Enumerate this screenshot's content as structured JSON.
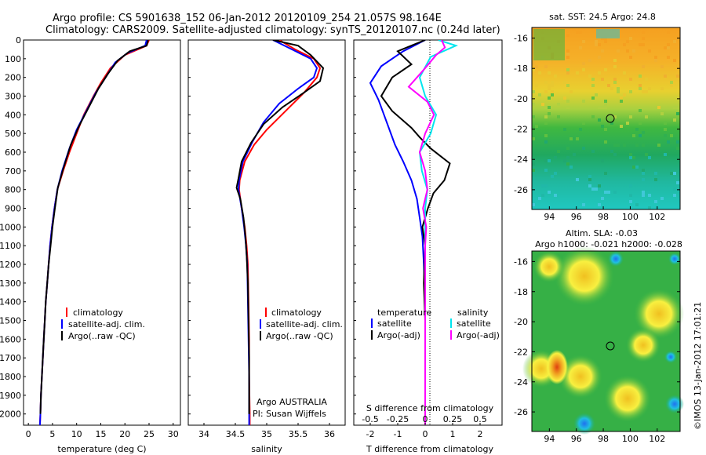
{
  "header": {
    "line1": "Argo profile: CS 5901638_152 06-Jan-2012 20120109_254 21.057S 98.164E",
    "line2": "Climatology: CARS2009. Satellite-adjusted climatology: synTS_20120107.nc (0.24d later)"
  },
  "colors": {
    "climatology": "#ff0000",
    "satellite": "#0000ff",
    "argo": "#000000",
    "sat_salinity": "#00e5ee",
    "argo_adj_salinity": "#ff00ff"
  },
  "depth_ticks": [
    "0",
    "100",
    "200",
    "300",
    "400",
    "500",
    "600",
    "700",
    "800",
    "900",
    "1000",
    "1100",
    "1200",
    "1300",
    "1400",
    "1500",
    "1600",
    "1700",
    "1800",
    "1900",
    "2000"
  ],
  "temperature_panel": {
    "xlabel": "temperature (deg C)",
    "xticks": [
      "0",
      "5",
      "10",
      "15",
      "20",
      "25",
      "30"
    ],
    "legend": [
      "climatology",
      "satellite-adj. clim.",
      "Argo(..raw -QC)"
    ]
  },
  "salinity_panel": {
    "xlabel": "salinity",
    "xticks": [
      "34",
      "34.5",
      "35",
      "35.5",
      "36"
    ],
    "legend": [
      "climatology",
      "satellite-adj. clim.",
      "Argo(..raw -QC)"
    ],
    "note1": "Argo AUSTRALIA",
    "note2": "PI: Susan Wijffels"
  },
  "difference_panel": {
    "legend_temperature_title": "temperature",
    "legend_salinity_title": "salinity",
    "legend_temp": [
      "satellite",
      "Argo(-adj)"
    ],
    "legend_sal": [
      "satellite",
      "Argo(-adj)"
    ],
    "s_label": "S difference from climatology",
    "s_ticks": [
      "-0.5",
      "-0.25",
      "0",
      "0.25",
      "0.5"
    ],
    "t_ticks": [
      "-2",
      "-1",
      "0",
      "1",
      "2"
    ],
    "t_label": "T difference from climatology"
  },
  "sst_map": {
    "title": "sat. SST: 24.5 Argo: 24.8",
    "yticks": [
      "-16",
      "-18",
      "-20",
      "-22",
      "-24",
      "-26"
    ],
    "xticks": [
      "94",
      "96",
      "98",
      "100",
      "102"
    ]
  },
  "sla_map": {
    "title1": "Altim. SLA: -0.03",
    "title2": "Argo h1000: -0.021 h2000: -0.028",
    "yticks": [
      "-16",
      "-18",
      "-20",
      "-22",
      "-24",
      "-26"
    ],
    "xticks": [
      "94",
      "96",
      "98",
      "100",
      "102"
    ]
  },
  "imos_stamp": "©IMOS 13-Jan-2012 17:01:21",
  "chart_data": [
    {
      "type": "line",
      "xlabel": "temperature (deg C)",
      "ylabel": "",
      "xlim": [
        -1,
        31.5
      ],
      "ylim": [
        2060,
        0
      ],
      "series": [
        {
          "name": "climatology",
          "points": [
            [
              25,
              0
            ],
            [
              24.5,
              30
            ],
            [
              20,
              80
            ],
            [
              17,
              150
            ],
            [
              15,
              230
            ],
            [
              13.5,
              300
            ],
            [
              11.5,
              400
            ],
            [
              10,
              500
            ],
            [
              8.5,
              600
            ],
            [
              7.2,
              700
            ],
            [
              6,
              800
            ],
            [
              5.4,
              900
            ],
            [
              4.9,
              1000
            ],
            [
              4.5,
              1100
            ],
            [
              4.2,
              1200
            ],
            [
              3.9,
              1300
            ],
            [
              3.6,
              1400
            ],
            [
              3.4,
              1500
            ],
            [
              3.2,
              1600
            ],
            [
              3,
              1700
            ],
            [
              2.8,
              1800
            ],
            [
              2.6,
              1900
            ],
            [
              2.5,
              2000
            ],
            [
              2.4,
              2060
            ]
          ]
        },
        {
          "name": "satellite-adj. clim.",
          "points": [
            [
              24.5,
              0
            ],
            [
              24.2,
              30
            ],
            [
              20.5,
              70
            ],
            [
              18,
              120
            ],
            [
              16,
              200
            ],
            [
              14,
              280
            ],
            [
              12,
              380
            ],
            [
              10,
              480
            ],
            [
              8.5,
              580
            ],
            [
              7,
              700
            ],
            [
              6,
              800
            ],
            [
              5.4,
              900
            ],
            [
              4.9,
              1000
            ],
            [
              4.5,
              1100
            ],
            [
              4.2,
              1200
            ],
            [
              3.9,
              1300
            ],
            [
              3.6,
              1400
            ],
            [
              3.4,
              1500
            ],
            [
              3.2,
              1600
            ],
            [
              3,
              1700
            ],
            [
              2.8,
              1800
            ],
            [
              2.6,
              1900
            ],
            [
              2.5,
              2000
            ],
            [
              2.4,
              2060
            ]
          ]
        },
        {
          "name": "Argo(..raw -QC)",
          "points": [
            [
              24.8,
              0
            ],
            [
              24.5,
              30
            ],
            [
              21,
              60
            ],
            [
              18.5,
              110
            ],
            [
              16.5,
              180
            ],
            [
              14.5,
              260
            ],
            [
              12.5,
              360
            ],
            [
              10.5,
              460
            ],
            [
              8.8,
              560
            ],
            [
              7.2,
              690
            ],
            [
              6.1,
              790
            ],
            [
              5.5,
              900
            ],
            [
              5,
              1000
            ],
            [
              4.6,
              1100
            ],
            [
              4.2,
              1200
            ],
            [
              3.9,
              1300
            ],
            [
              3.6,
              1400
            ],
            [
              3.4,
              1500
            ],
            [
              3.2,
              1600
            ],
            [
              3,
              1700
            ],
            [
              2.8,
              1800
            ],
            [
              2.6,
              1900
            ],
            [
              2.5,
              2000
            ]
          ]
        }
      ]
    },
    {
      "type": "line",
      "xlabel": "salinity",
      "ylabel": "",
      "xlim": [
        33.75,
        36.25
      ],
      "ylim": [
        2060,
        0
      ],
      "series": [
        {
          "name": "climatology",
          "points": [
            [
              35.2,
              0
            ],
            [
              35.45,
              50
            ],
            [
              35.75,
              100
            ],
            [
              35.85,
              150
            ],
            [
              35.8,
              200
            ],
            [
              35.6,
              280
            ],
            [
              35.3,
              380
            ],
            [
              35,
              480
            ],
            [
              34.8,
              560
            ],
            [
              34.65,
              650
            ],
            [
              34.57,
              750
            ],
            [
              34.56,
              800
            ],
            [
              34.6,
              900
            ],
            [
              34.65,
              1000
            ],
            [
              34.68,
              1100
            ],
            [
              34.7,
              1200
            ],
            [
              34.71,
              1400
            ],
            [
              34.72,
              1600
            ],
            [
              34.72,
              1800
            ],
            [
              34.73,
              2000
            ],
            [
              34.73,
              2060
            ]
          ]
        },
        {
          "name": "satellite-adj. clim.",
          "points": [
            [
              35.1,
              0
            ],
            [
              35.4,
              50
            ],
            [
              35.7,
              100
            ],
            [
              35.8,
              150
            ],
            [
              35.75,
              200
            ],
            [
              35.5,
              260
            ],
            [
              35.2,
              340
            ],
            [
              34.95,
              440
            ],
            [
              34.78,
              540
            ],
            [
              34.62,
              650
            ],
            [
              34.56,
              750
            ],
            [
              34.55,
              800
            ],
            [
              34.6,
              900
            ],
            [
              34.64,
              1000
            ],
            [
              34.67,
              1100
            ],
            [
              34.69,
              1200
            ],
            [
              34.7,
              1400
            ],
            [
              34.71,
              1600
            ],
            [
              34.72,
              1800
            ],
            [
              34.72,
              2000
            ],
            [
              34.72,
              2060
            ]
          ]
        },
        {
          "name": "Argo(..raw -QC)",
          "points": [
            [
              35.1,
              0
            ],
            [
              35.5,
              30
            ],
            [
              35.7,
              80
            ],
            [
              35.9,
              150
            ],
            [
              35.85,
              220
            ],
            [
              35.6,
              280
            ],
            [
              35.25,
              360
            ],
            [
              34.95,
              450
            ],
            [
              34.75,
              550
            ],
            [
              34.6,
              650
            ],
            [
              34.55,
              740
            ],
            [
              34.52,
              790
            ],
            [
              34.58,
              850
            ],
            [
              34.63,
              950
            ],
            [
              34.66,
              1050
            ],
            [
              34.68,
              1150
            ],
            [
              34.7,
              1300
            ],
            [
              34.71,
              1500
            ],
            [
              34.72,
              1700
            ],
            [
              34.72,
              1900
            ],
            [
              34.72,
              2000
            ]
          ]
        }
      ]
    },
    {
      "type": "line",
      "xlabel": "T difference from climatology",
      "ylabel": "",
      "xlim": [
        -2.6,
        2.8
      ],
      "ylim": [
        2060,
        0
      ],
      "series": [
        {
          "name": "satellite",
          "axis": "T",
          "points": [
            [
              0,
              0
            ],
            [
              -0.8,
              60
            ],
            [
              -1.6,
              140
            ],
            [
              -2,
              230
            ],
            [
              -1.7,
              320
            ],
            [
              -1.5,
              400
            ],
            [
              -1.3,
              480
            ],
            [
              -1.1,
              560
            ],
            [
              -0.8,
              650
            ],
            [
              -0.5,
              750
            ],
            [
              -0.3,
              850
            ],
            [
              -0.2,
              950
            ],
            [
              -0.1,
              1050
            ],
            [
              -0.05,
              1200
            ],
            [
              0,
              1400
            ],
            [
              0,
              2060
            ]
          ]
        },
        {
          "name": "Argo(-adj)",
          "axis": "T",
          "points": [
            [
              0,
              0
            ],
            [
              -1,
              60
            ],
            [
              -0.5,
              130
            ],
            [
              -1.2,
              200
            ],
            [
              -1.6,
              300
            ],
            [
              -1.2,
              380
            ],
            [
              -0.5,
              470
            ],
            [
              -0.2,
              520
            ],
            [
              0.2,
              580
            ],
            [
              0.9,
              660
            ],
            [
              0.7,
              750
            ],
            [
              0.3,
              820
            ],
            [
              0.1,
              900
            ],
            [
              -0.1,
              1000
            ],
            [
              0,
              1100
            ],
            [
              -0.05,
              1300
            ],
            [
              0,
              1500
            ],
            [
              0,
              2060
            ]
          ]
        },
        {
          "name": "satellite",
          "axis": "S",
          "points": [
            [
              0.12,
              0
            ],
            [
              0.28,
              30
            ],
            [
              0.05,
              90
            ],
            [
              -0.05,
              200
            ],
            [
              0,
              300
            ],
            [
              0.1,
              400
            ],
            [
              0.05,
              500
            ],
            [
              -0.05,
              600
            ],
            [
              -0.03,
              700
            ],
            [
              0.02,
              800
            ],
            [
              0,
              900
            ],
            [
              0,
              1000
            ],
            [
              0,
              2060
            ]
          ]
        },
        {
          "name": "Argo(-adj)",
          "axis": "S",
          "points": [
            [
              0.15,
              0
            ],
            [
              0.18,
              40
            ],
            [
              0.1,
              80
            ],
            [
              0,
              150
            ],
            [
              -0.15,
              250
            ],
            [
              0.02,
              330
            ],
            [
              0.08,
              400
            ],
            [
              0,
              500
            ],
            [
              -0.05,
              600
            ],
            [
              0,
              700
            ],
            [
              0.02,
              800
            ],
            [
              -0.02,
              900
            ],
            [
              0.01,
              1000
            ],
            [
              0,
              1100
            ],
            [
              0,
              2060
            ]
          ]
        }
      ]
    }
  ]
}
